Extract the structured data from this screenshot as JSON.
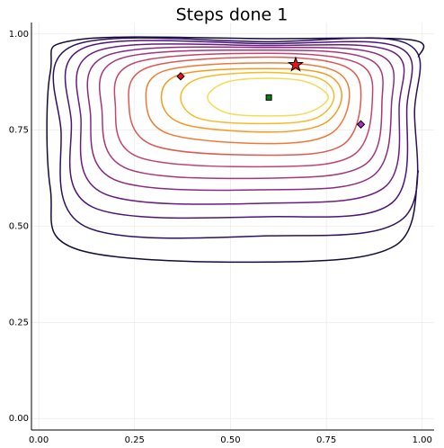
{
  "chart_data": {
    "type": "contour",
    "title": "Steps done 1",
    "xlim": [
      -0.019,
      1.031
    ],
    "ylim": [
      -0.03,
      1.03
    ],
    "xticks": [
      {
        "value": 0,
        "label": "0.00"
      },
      {
        "value": 0.25,
        "label": "0.25"
      },
      {
        "value": 0.5,
        "label": "0.50"
      },
      {
        "value": 0.75,
        "label": "0.75"
      },
      {
        "value": 1,
        "label": "1.00"
      }
    ],
    "yticks": [
      {
        "value": 0,
        "label": "0.00"
      },
      {
        "value": 0.25,
        "label": "0.25"
      },
      {
        "value": 0.5,
        "label": "0.50"
      },
      {
        "value": 0.75,
        "label": "0.75"
      },
      {
        "value": 1,
        "label": "1.00"
      }
    ],
    "grid": true,
    "contours": [
      {
        "color": "#160b39",
        "closed": false,
        "x": [
          0.99,
          0.93,
          0.6,
          0.1,
          0.03,
          0.03,
          0.1,
          0.6,
          0.97,
          0.99
        ],
        "y": [
          0.645,
          0.45,
          0.407,
          0.44,
          0.6,
          0.9,
          0.985,
          0.988,
          0.985,
          0.94
        ]
      },
      {
        "color": "#2d1160",
        "closed": true,
        "x": [
          0.98,
          0.95,
          0.6,
          0.12,
          0.058,
          0.09,
          0.6,
          0.96
        ],
        "y": [
          0.8,
          0.52,
          0.475,
          0.5,
          0.75,
          0.97,
          0.98,
          0.975
        ]
      },
      {
        "color": "#4b1478",
        "closed": true,
        "x": [
          0.96,
          0.92,
          0.6,
          0.14,
          0.085,
          0.12,
          0.6,
          0.94
        ],
        "y": [
          0.81,
          0.56,
          0.525,
          0.55,
          0.77,
          0.965,
          0.975,
          0.965
        ]
      },
      {
        "color": "#6a1c80",
        "closed": true,
        "x": [
          0.94,
          0.9,
          0.6,
          0.17,
          0.11,
          0.15,
          0.6,
          0.92
        ],
        "y": [
          0.815,
          0.6,
          0.56,
          0.585,
          0.78,
          0.955,
          0.97,
          0.955
        ]
      },
      {
        "color": "#8a2a7e",
        "closed": true,
        "x": [
          0.92,
          0.87,
          0.6,
          0.2,
          0.135,
          0.18,
          0.6,
          0.89
        ],
        "y": [
          0.82,
          0.63,
          0.595,
          0.62,
          0.79,
          0.945,
          0.965,
          0.945
        ]
      },
      {
        "color": "#a83679",
        "closed": true,
        "x": [
          0.895,
          0.85,
          0.6,
          0.23,
          0.165,
          0.21,
          0.6,
          0.86
        ],
        "y": [
          0.825,
          0.66,
          0.625,
          0.65,
          0.8,
          0.935,
          0.958,
          0.935
        ]
      },
      {
        "color": "#c4446a",
        "closed": true,
        "x": [
          0.87,
          0.82,
          0.6,
          0.26,
          0.2,
          0.25,
          0.6,
          0.83
        ],
        "y": [
          0.83,
          0.685,
          0.655,
          0.68,
          0.81,
          0.925,
          0.95,
          0.925
        ]
      },
      {
        "color": "#dc5a52",
        "closed": true,
        "x": [
          0.84,
          0.79,
          0.6,
          0.3,
          0.235,
          0.29,
          0.6,
          0.8
        ],
        "y": [
          0.83,
          0.71,
          0.685,
          0.71,
          0.82,
          0.915,
          0.94,
          0.915
        ]
      },
      {
        "color": "#ee7a35",
        "closed": true,
        "x": [
          0.81,
          0.76,
          0.6,
          0.34,
          0.28,
          0.33,
          0.6,
          0.77
        ],
        "y": [
          0.835,
          0.74,
          0.715,
          0.74,
          0.825,
          0.905,
          0.925,
          0.905
        ]
      },
      {
        "color": "#f59a1f",
        "closed": true,
        "x": [
          0.79,
          0.74,
          0.6,
          0.38,
          0.32,
          0.37,
          0.6,
          0.75
        ],
        "y": [
          0.835,
          0.765,
          0.745,
          0.765,
          0.83,
          0.895,
          0.91,
          0.895
        ]
      },
      {
        "color": "#f5bb28",
        "closed": true,
        "x": [
          0.77,
          0.72,
          0.59,
          0.42,
          0.37,
          0.42,
          0.59,
          0.73
        ],
        "y": [
          0.835,
          0.78,
          0.767,
          0.78,
          0.835,
          0.885,
          0.9,
          0.885
        ]
      },
      {
        "color": "#f4dc57",
        "closed": true,
        "x": [
          0.755,
          0.7,
          0.6,
          0.49,
          0.44,
          0.49,
          0.6,
          0.7
        ],
        "y": [
          0.835,
          0.795,
          0.787,
          0.795,
          0.835,
          0.875,
          0.885,
          0.875
        ]
      }
    ],
    "points": [
      {
        "marker": "diamond",
        "color": "#e8141c",
        "x": 0.37,
        "y": 0.89
      },
      {
        "marker": "diamond",
        "color": "#b02ad0",
        "x": 0.84,
        "y": 0.765
      },
      {
        "marker": "square",
        "color": "#0f7a0f",
        "x": 0.6,
        "y": 0.835
      },
      {
        "marker": "star",
        "color": "#e8141c",
        "x": 0.67,
        "y": 0.92
      }
    ]
  }
}
